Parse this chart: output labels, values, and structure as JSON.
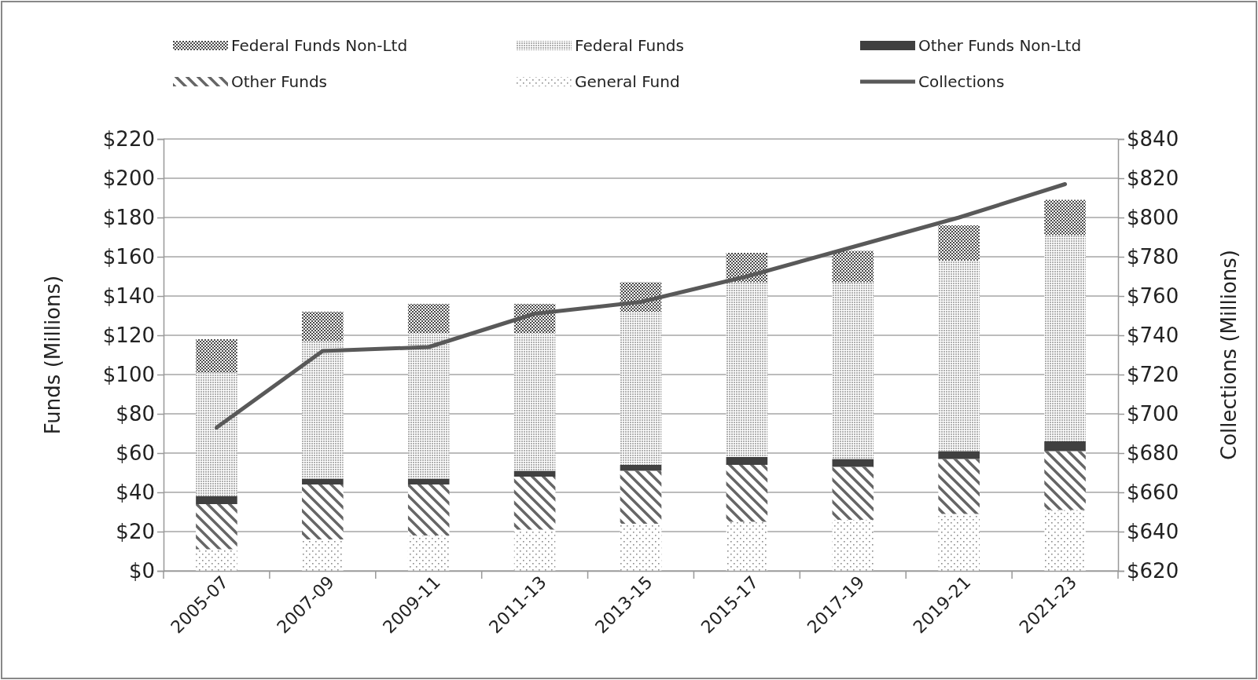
{
  "chart_data": {
    "type": "bar",
    "stacked": true,
    "categories": [
      "2005-07",
      "2007-09",
      "2009-11",
      "2011-13",
      "2013-15",
      "2015-17",
      "2017-19",
      "2019-21",
      "2021-23"
    ],
    "series": [
      {
        "name": "General Fund",
        "color": "#8c8c8c",
        "values": [
          11,
          16,
          18,
          21,
          24,
          25,
          26,
          29,
          31
        ]
      },
      {
        "name": "Other Funds",
        "color": "#666666",
        "values": [
          23,
          28,
          26,
          27,
          27,
          29,
          27,
          28,
          30
        ]
      },
      {
        "name": "Other Funds Non-Ltd",
        "color": "#404040",
        "values": [
          4,
          3,
          3,
          3,
          3,
          4,
          4,
          4,
          5
        ]
      },
      {
        "name": "Federal Funds",
        "color": "#b0b0b0",
        "values": [
          63,
          70,
          74,
          70,
          78,
          89,
          90,
          97,
          105
        ]
      },
      {
        "name": "Federal Funds Non-Ltd",
        "color": "#4a4a4a",
        "values": [
          17,
          15,
          15,
          15,
          15,
          15,
          16,
          18,
          18
        ]
      },
      {
        "name": "Collections",
        "type": "line",
        "axis": "y2",
        "color": "#595959",
        "values": [
          693,
          732,
          734,
          751,
          757,
          770,
          785,
          800,
          817
        ]
      }
    ],
    "ylabel": "Funds (Millions)",
    "y2label": "Collections (Millions)",
    "ylim": [
      0,
      220
    ],
    "yticks": [
      {
        "value": 0,
        "label": "$0"
      },
      {
        "value": 20,
        "label": "$20"
      },
      {
        "value": 40,
        "label": "$40"
      },
      {
        "value": 60,
        "label": "$60"
      },
      {
        "value": 80,
        "label": "$80"
      },
      {
        "value": 100,
        "label": "$100"
      },
      {
        "value": 120,
        "label": "$120"
      },
      {
        "value": 140,
        "label": "$140"
      },
      {
        "value": 160,
        "label": "$160"
      },
      {
        "value": 180,
        "label": "$180"
      },
      {
        "value": 200,
        "label": "$200"
      },
      {
        "value": 220,
        "label": "$220"
      }
    ],
    "y2lim": [
      620,
      840
    ],
    "y2ticks": [
      {
        "value": 620,
        "label": "$620"
      },
      {
        "value": 640,
        "label": "$640"
      },
      {
        "value": 660,
        "label": "$660"
      },
      {
        "value": 680,
        "label": "$680"
      },
      {
        "value": 700,
        "label": "$700"
      },
      {
        "value": 720,
        "label": "$720"
      },
      {
        "value": 740,
        "label": "$740"
      },
      {
        "value": 760,
        "label": "$760"
      },
      {
        "value": 780,
        "label": "$780"
      },
      {
        "value": 800,
        "label": "$800"
      },
      {
        "value": 820,
        "label": "$820"
      },
      {
        "value": 840,
        "label": "$840"
      }
    ],
    "grid": "y",
    "legend": "top",
    "marker": "none",
    "line_style": "solid"
  }
}
